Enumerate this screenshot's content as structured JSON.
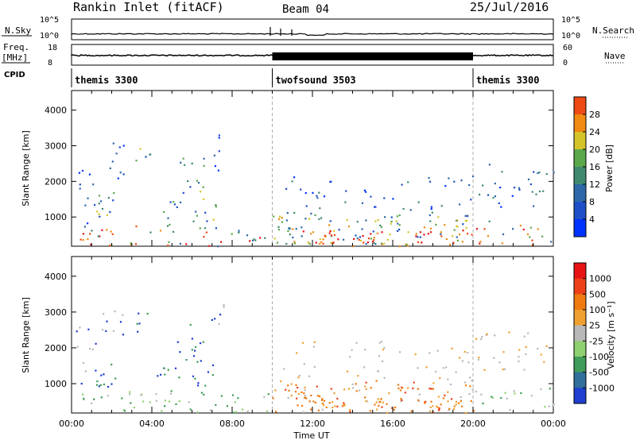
{
  "header": {
    "title": "Rankin Inlet (fitACF)",
    "beam": "Beam 04",
    "date": "25/Jul/2016"
  },
  "strip": {
    "nsky_label": "N.Sky",
    "nsky_ticks": [
      "10^5",
      "10^0"
    ],
    "nsearch_label": "N.Search",
    "nsearch_ticks": [
      "10^5",
      "10^0"
    ],
    "freq_label_1": "Freq.",
    "freq_label_2": "[MHz]",
    "freq_ticks": [
      "18",
      "8"
    ],
    "nave_label": "Nave",
    "nave_ticks": [
      "60",
      "0"
    ],
    "cpid_label": "CPID",
    "cpid_segments": [
      {
        "name": "themis 3300",
        "start": 0,
        "end": 10
      },
      {
        "name": "twofsound 3503",
        "start": 10,
        "end": 20
      },
      {
        "name": "themis 3300",
        "start": 20,
        "end": 24
      }
    ]
  },
  "colors": {
    "power": [
      "#0033ff",
      "#1e4fc8",
      "#2f68a8",
      "#3f8a6e",
      "#5aa84a",
      "#d4c42a",
      "#f08a10",
      "#ee4a14",
      "#e61515"
    ],
    "velocity": [
      "#1f3fd0",
      "#2f6f9a",
      "#3f9c5a",
      "#8fd070",
      "#b8b8b8",
      "#f0a030",
      "#f07a10",
      "#ee4018",
      "#e81414"
    ]
  },
  "chart_data": [
    {
      "type": "heatmap",
      "name": "power",
      "ylabel": "Slant Range [km]",
      "yticks": [
        "1000",
        "2000",
        "3000",
        "4000"
      ],
      "ylim": [
        180,
        4550
      ],
      "colorbar_label": "Power [dB]",
      "colorbar_ticks": [
        "4",
        "8",
        "12",
        "16",
        "20",
        "24",
        "28"
      ],
      "colorbar_range": [
        0,
        32
      ]
    },
    {
      "type": "heatmap",
      "name": "velocity",
      "ylabel": "Slant Range [km]",
      "yticks": [
        "1000",
        "2000",
        "3000",
        "4000"
      ],
      "ylim": [
        180,
        4550
      ],
      "colorbar_label": "Velocity [m s⁻¹]",
      "colorbar_ticks": [
        "1000",
        "500",
        "100",
        "25",
        "-25",
        "-100",
        "-500",
        "-1000"
      ],
      "xlabel": "Time UT",
      "xticks": [
        "00:00",
        "04:00",
        "08:00",
        "12:00",
        "16:00",
        "20:00",
        "00:00"
      ],
      "xlim": [
        0,
        24
      ]
    }
  ]
}
